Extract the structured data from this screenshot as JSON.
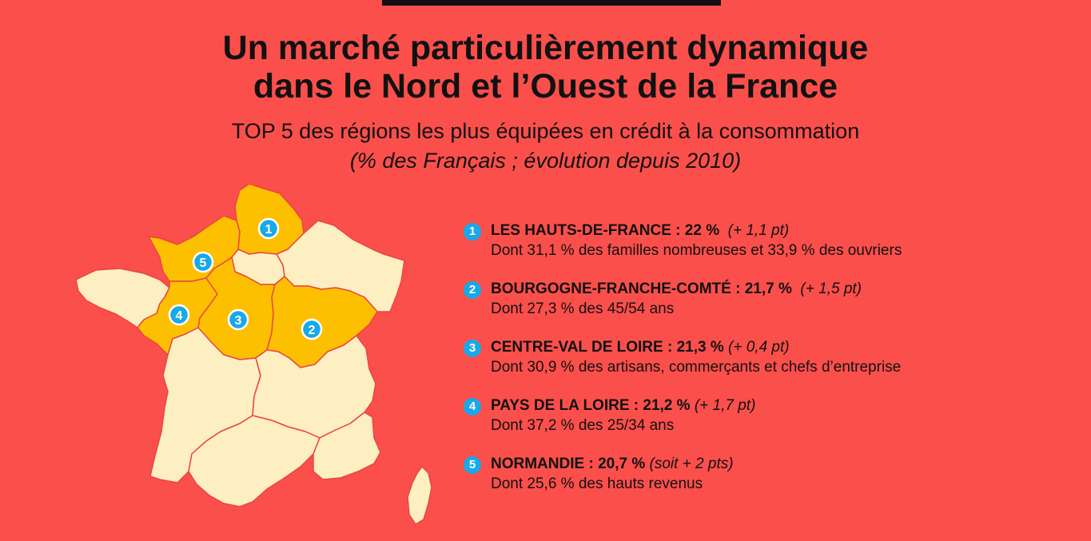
{
  "header": {
    "title_line1": "Un marché particulièrement dynamique",
    "title_line2": "dans le Nord et l’Ouest de la France",
    "subtitle": "TOP 5 des régions les plus équipées en crédit à la consommation",
    "note": "(% des Français ; évolution depuis 2010)"
  },
  "colors": {
    "background": "#fb4f4b",
    "highlighted_region": "#fdc000",
    "other_region": "#feefc2",
    "border": "#e8473f",
    "badge": "#17a9e8"
  },
  "map": {
    "highlighted_regions": [
      {
        "rank": "1",
        "name": "Hauts-de-France"
      },
      {
        "rank": "2",
        "name": "Bourgogne-Franche-Comté"
      },
      {
        "rank": "3",
        "name": "Centre-Val de Loire"
      },
      {
        "rank": "4",
        "name": "Pays de la Loire"
      },
      {
        "rank": "5",
        "name": "Normandie"
      }
    ]
  },
  "ranking": [
    {
      "rank": "1",
      "region": "LES HAUTS-DE-FRANCE : ",
      "value": "22 %",
      "change": "(+ 1,1 pt)",
      "detail": "Dont 31,1 % des familles nombreuses et 33,9 % des ouvriers"
    },
    {
      "rank": "2",
      "region": "BOURGOGNE-FRANCHE-COMTÉ : ",
      "value": "21,7 %",
      "change": "(+ 1,5 pt)",
      "detail": "Dont 27,3 % des 45/54 ans"
    },
    {
      "rank": "3",
      "region": "CENTRE-VAL DE LOIRE : ",
      "value": "21,3 %",
      "change": "(+ 0,4 pt)",
      "detail": "Dont 30,9 % des artisans, commerçants et chefs d’entreprise"
    },
    {
      "rank": "4",
      "region": "PAYS DE LA LOIRE : ",
      "value": "21,2 %",
      "change": "(+ 1,7 pt)",
      "detail": "Dont 37,2 % des 25/34 ans"
    },
    {
      "rank": "5",
      "region": "NORMANDIE : ",
      "value": "20,7 %",
      "change": "(soit + 2 pts)",
      "detail": "Dont 25,6 % des hauts revenus"
    }
  ]
}
